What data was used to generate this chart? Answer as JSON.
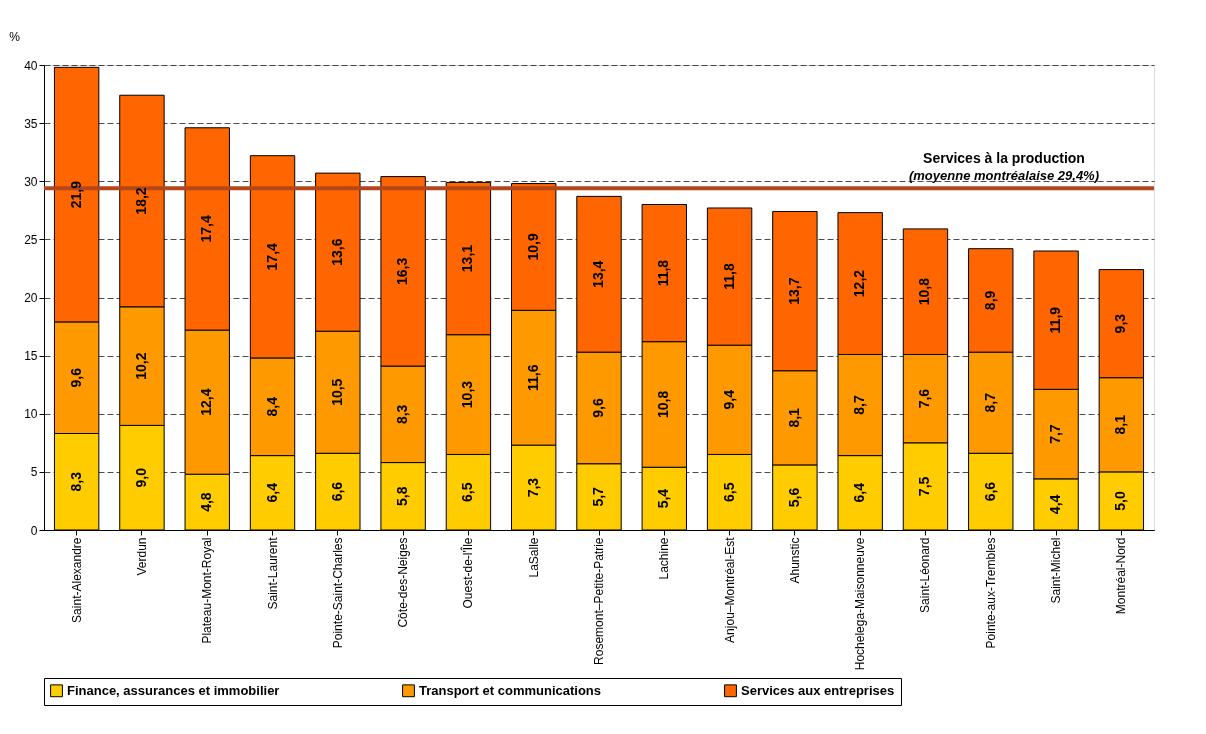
{
  "chart_data": {
    "type": "bar",
    "stacked": true,
    "ylabel": "%",
    "categories": [
      "Saint-Alexandre",
      "Verdun",
      "Plateau-Mont-Royal",
      "Saint-Laurent",
      "Pointe-Saint-Charles",
      "Côte-des-Neiges",
      "Ouest-de-l'Île",
      "LaSalle",
      "Rosemont–Petite-Patrie",
      "Lachine",
      "Anjou–Montréal-Est",
      "Ahunstic",
      "Hochelega-Maisonneuve",
      "Saint-Léonard",
      "Pointe-aux-Trembles",
      "Saint-Michel",
      "Montréal-Nord"
    ],
    "series": [
      {
        "name": "Finance, assurances et immobilier",
        "color": "#ffcc00",
        "values": [
          8.3,
          9.0,
          4.8,
          6.4,
          6.6,
          5.8,
          6.5,
          7.3,
          5.7,
          5.4,
          6.5,
          5.6,
          6.4,
          7.5,
          6.6,
          4.4,
          5.0
        ],
        "value_labels": [
          "8,3",
          "9,0",
          "4,8",
          "6,4",
          "6,6",
          "5,8",
          "6,5",
          "7,3",
          "5,7",
          "5,4",
          "6,5",
          "5,6",
          "6,4",
          "7,5",
          "6,6",
          "4,4",
          "5,0"
        ]
      },
      {
        "name": "Transport et communications",
        "color": "#ff9900",
        "values": [
          9.6,
          10.2,
          12.4,
          8.4,
          10.5,
          8.3,
          10.3,
          11.6,
          9.6,
          10.8,
          9.4,
          8.1,
          8.7,
          7.6,
          8.7,
          7.7,
          8.1
        ],
        "value_labels": [
          "9,6",
          "10,2",
          "12,4",
          "8,4",
          "10,5",
          "8,3",
          "10,3",
          "11,6",
          "9,6",
          "10,8",
          "9,4",
          "8,1",
          "8,7",
          "7,6",
          "8,7",
          "7,7",
          "8,1"
        ]
      },
      {
        "name": "Services aux entreprises",
        "color": "#ff6600",
        "values": [
          21.9,
          18.2,
          17.4,
          17.4,
          13.6,
          16.3,
          13.1,
          10.9,
          13.4,
          11.8,
          11.8,
          13.7,
          12.2,
          10.8,
          8.9,
          11.9,
          9.3
        ],
        "value_labels": [
          "21,9",
          "18,2",
          "17,4",
          "17,4",
          "13,6",
          "16,3",
          "13,1",
          "10,9",
          "13,4",
          "11,8",
          "11,8",
          "13,7",
          "12,2",
          "10,8",
          "8,9",
          "11,9",
          "9,3"
        ]
      }
    ],
    "ylim": [
      0,
      40
    ],
    "yticks": [
      0,
      5,
      10,
      15,
      20,
      25,
      30,
      35,
      40
    ],
    "grid": "y",
    "legend": "bottom",
    "ref_lines": [
      {
        "axis": "y",
        "value": 29.4,
        "label": "Services à la production",
        "color": "#b5461a"
      }
    ],
    "annotations": [
      "(moyenne montréalaise 29,4%)"
    ]
  }
}
